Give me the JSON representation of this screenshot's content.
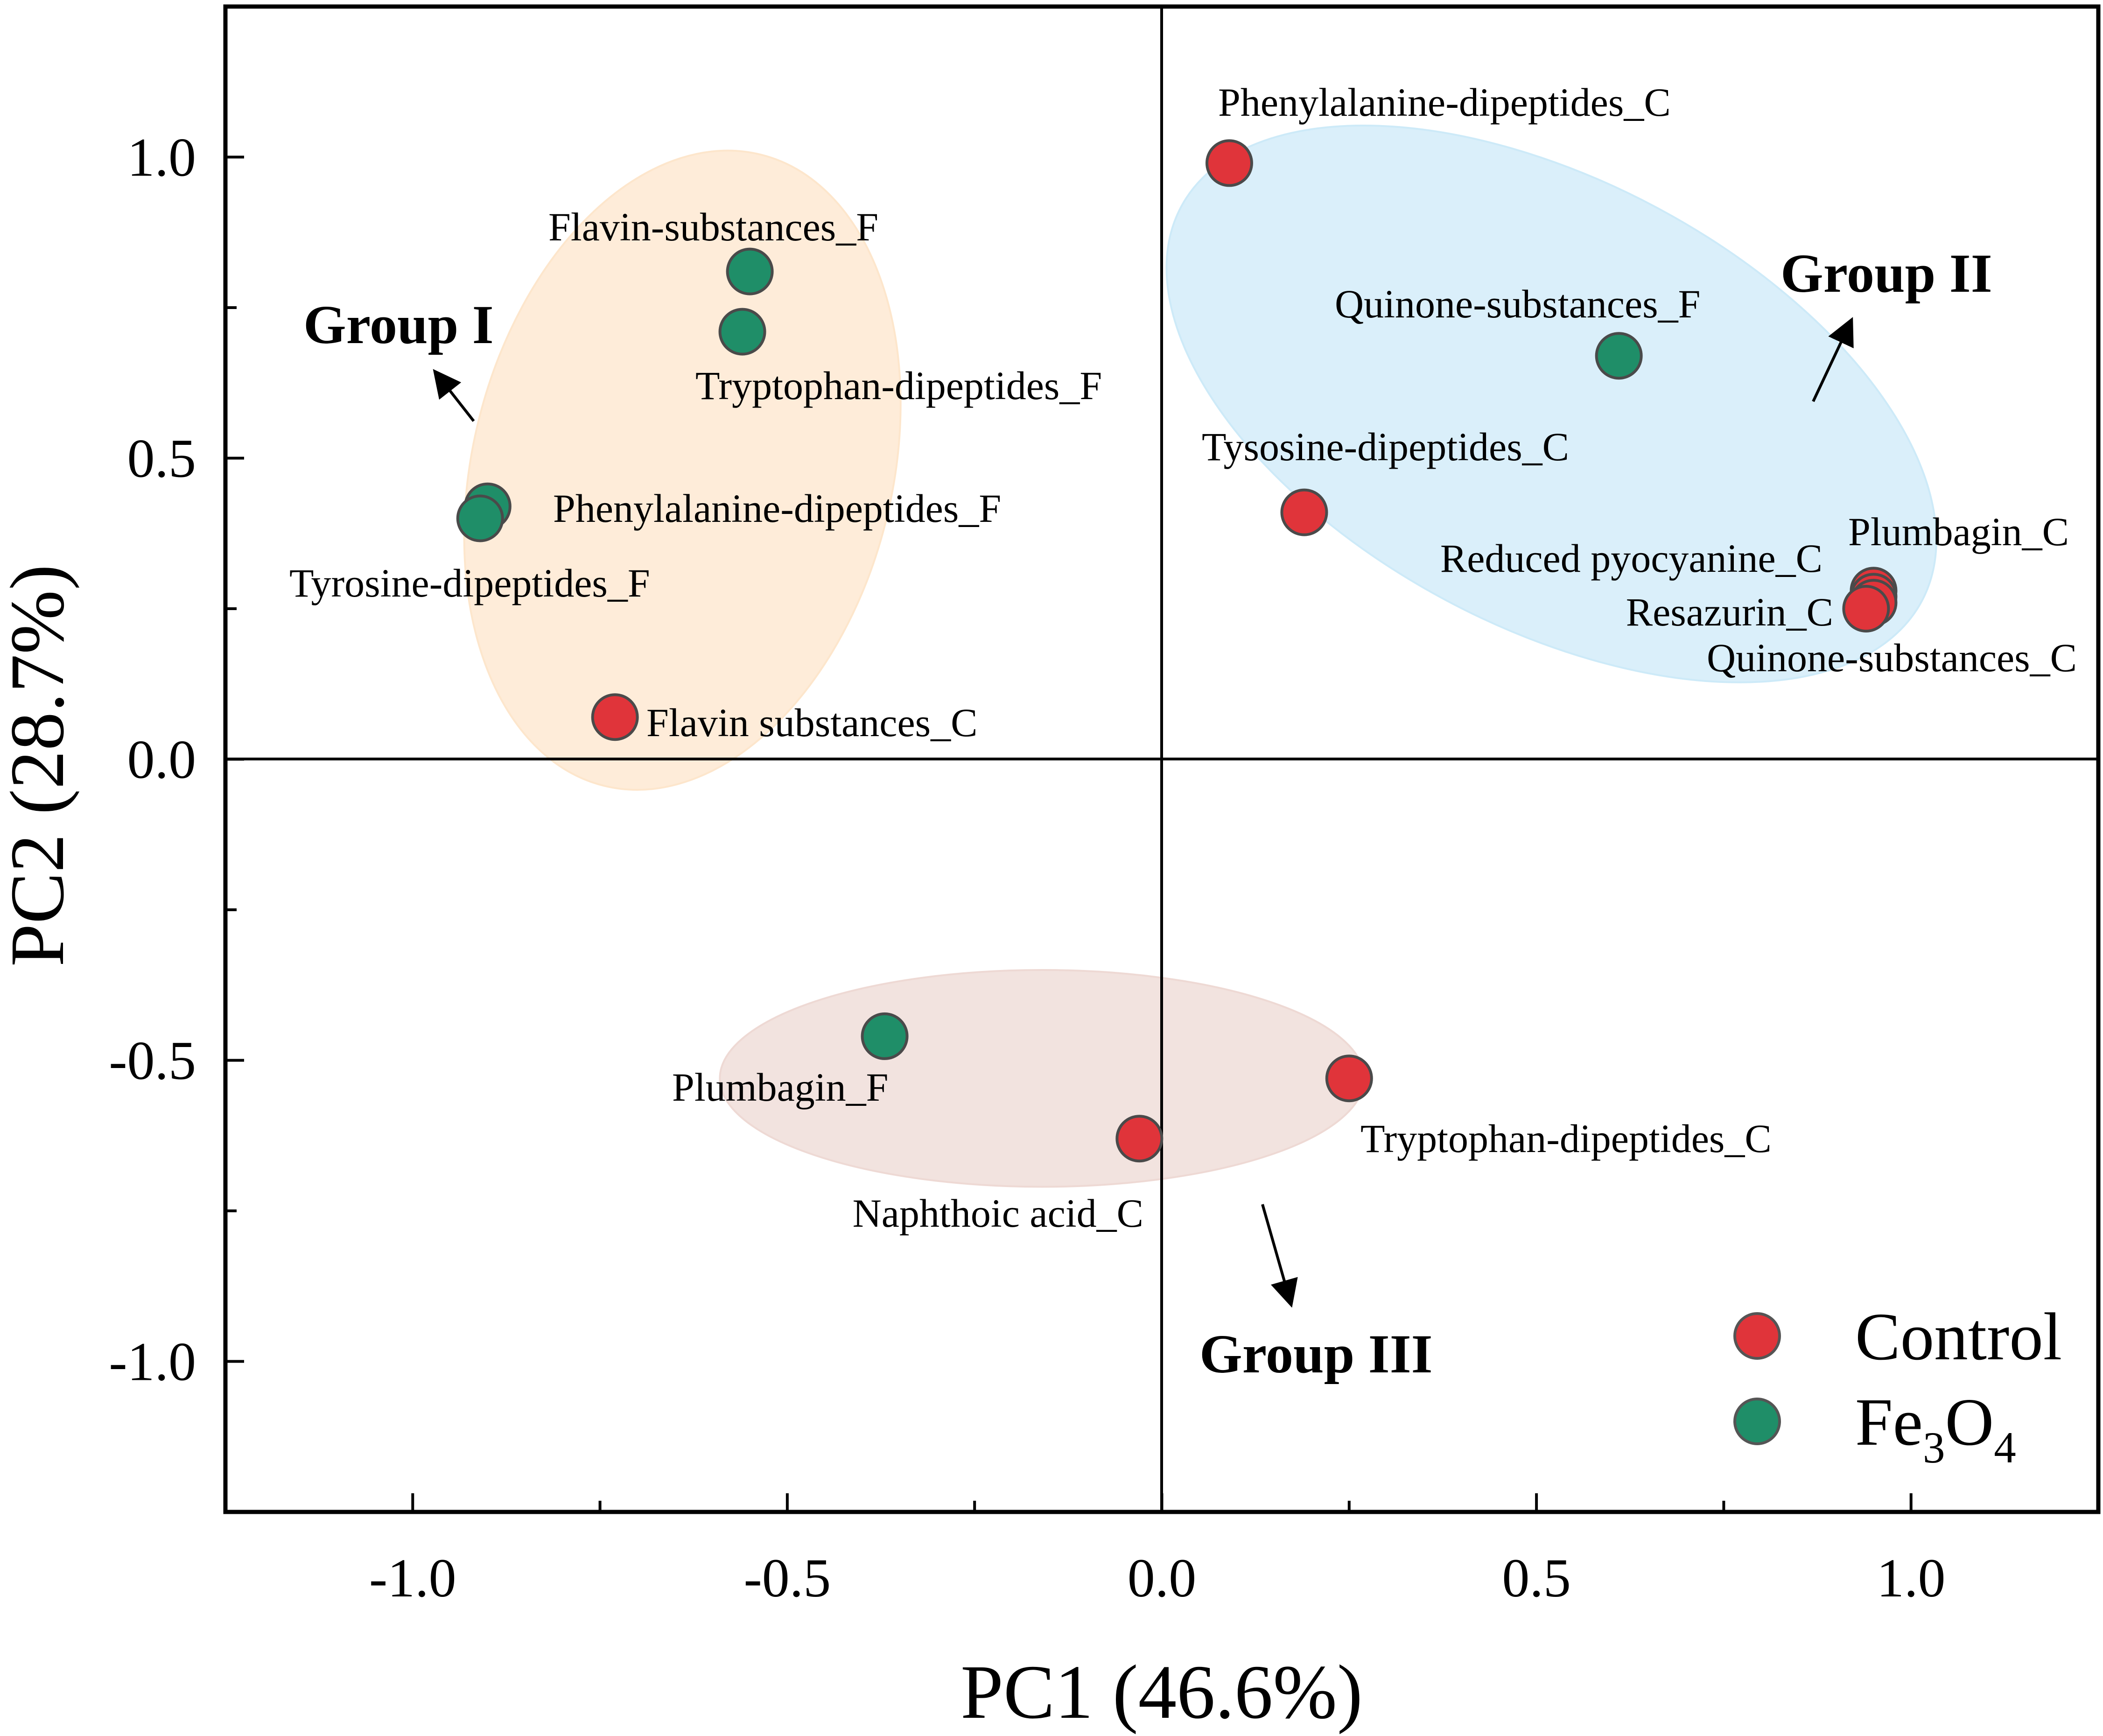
{
  "chart_data": {
    "type": "scatter",
    "title": "",
    "xlabel": "PC1 (46.6%)",
    "ylabel": "PC2 (28.7%)",
    "xlim": [
      -1.25,
      1.25
    ],
    "ylim": [
      -1.25,
      1.25
    ],
    "xticks": [
      -1.0,
      -0.5,
      0.0,
      0.5,
      1.0
    ],
    "xtick_labels": [
      "-1.0",
      "-0.5",
      "0.0",
      "0.5",
      "1.0"
    ],
    "yticks": [
      -1.0,
      -0.5,
      0.0,
      0.5,
      1.0
    ],
    "ytick_labels": [
      "-1.0",
      "-0.5",
      "0.0",
      "0.5",
      "1.0"
    ],
    "minor_tick_step": 0.25,
    "grid": false,
    "legend_position": "bottom-right",
    "colors": {
      "Control": "#e0343a",
      "Fe3O4": "#1f8e68"
    },
    "series": [
      {
        "name": "Control",
        "legend_label": "Control",
        "points": [
          {
            "label": "Phenylalanine-dipeptides_C",
            "x": 0.09,
            "y": 0.99
          },
          {
            "label": "Tysosine-dipeptides_C",
            "x": 0.19,
            "y": 0.41
          },
          {
            "label": "Reduced pyocyanine_C",
            "x": 0.95,
            "y": 0.28
          },
          {
            "label": "Plumbagin_C",
            "x": 0.95,
            "y": 0.27
          },
          {
            "label": "Resazurin_C",
            "x": 0.95,
            "y": 0.26
          },
          {
            "label": "Quinone-substances_C",
            "x": 0.94,
            "y": 0.25
          },
          {
            "label": "Flavin substances_C",
            "x": -0.73,
            "y": 0.07
          },
          {
            "label": "Tryptophan-dipeptides_C",
            "x": 0.25,
            "y": -0.53
          },
          {
            "label": "Naphthoic acid_C",
            "x": -0.03,
            "y": -0.63
          }
        ]
      },
      {
        "name": "Fe3O4",
        "legend_label": "Fe",
        "legend_sub1": "3",
        "legend_mid": "O",
        "legend_sub2": "4",
        "points": [
          {
            "label": "Flavin-substances_F",
            "x": -0.55,
            "y": 0.81
          },
          {
            "label": "Tryptophan-dipeptides_F",
            "x": -0.56,
            "y": 0.71
          },
          {
            "label": "Quinone-substances_F",
            "x": 0.61,
            "y": 0.67
          },
          {
            "label": "Phenylalanine-dipeptides_F",
            "x": -0.9,
            "y": 0.42
          },
          {
            "label": "Tyrosine-dipeptides_F",
            "x": -0.91,
            "y": 0.4
          },
          {
            "label": "Plumbagin_F",
            "x": -0.37,
            "y": -0.46
          }
        ]
      }
    ],
    "groups": [
      {
        "name": "Group I",
        "center": [
          -0.64,
          0.48
        ],
        "rx": 0.28,
        "ry": 0.54,
        "rotate_deg": 14,
        "fill": "#fde6cc"
      },
      {
        "name": "Group II",
        "center": [
          0.52,
          0.59
        ],
        "rx": 0.56,
        "ry": 0.37,
        "rotate_deg": 28,
        "fill": "#cdeaf8"
      },
      {
        "name": "Group III",
        "center": [
          -0.16,
          -0.53
        ],
        "rx": 0.43,
        "ry": 0.18,
        "rotate_deg": 0,
        "fill": "#eed9d4"
      }
    ]
  }
}
